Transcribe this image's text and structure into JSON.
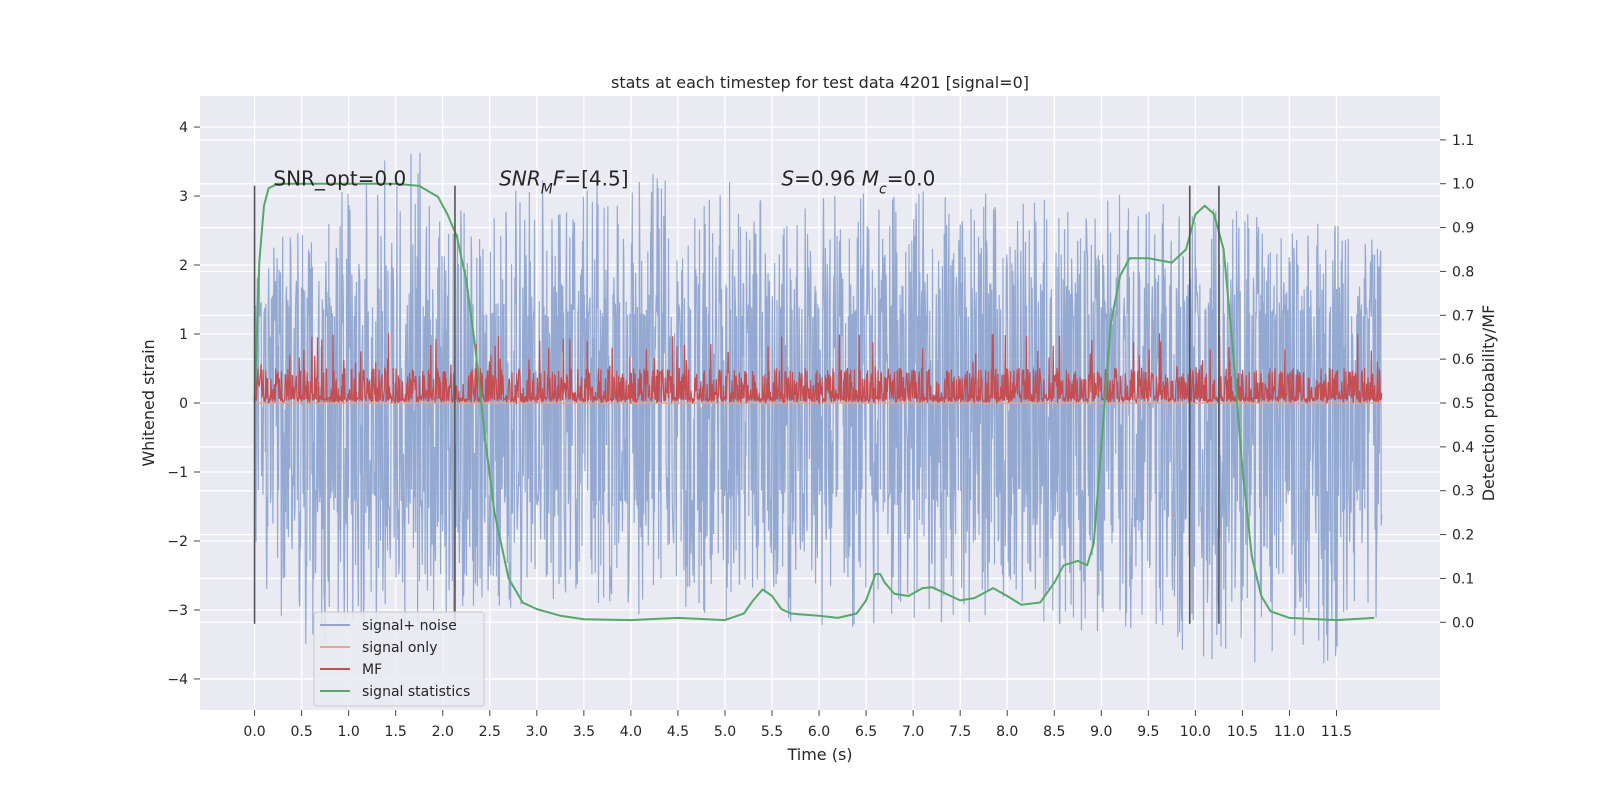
{
  "chart_data": {
    "type": "line",
    "title": "stats at each timestep for test data 4201 [signal=0]",
    "xlabel": "Time (s)",
    "ylabel_left": "Whitened strain",
    "ylabel_right": "Detection probability/MF",
    "xlim": [
      -0.58,
      12.6
    ],
    "ylim_left": [
      -4.45,
      4.45
    ],
    "ylim_right": [
      -0.2,
      1.2
    ],
    "x_ticks": [
      0.0,
      0.5,
      1.0,
      1.5,
      2.0,
      2.5,
      3.0,
      3.5,
      4.0,
      4.5,
      5.0,
      5.5,
      6.0,
      6.5,
      7.0,
      7.5,
      8.0,
      8.5,
      9.0,
      9.5,
      10.0,
      10.5,
      11.0,
      11.5
    ],
    "x_tick_labels": [
      "0.0",
      "0.5",
      "1.0",
      "1.5",
      "2.0",
      "2.5",
      "3.0",
      "3.5",
      "4.0",
      "4.5",
      "5.0",
      "5.5",
      "6.0",
      "6.5",
      "7.0",
      "7.5",
      "8.0",
      "8.5",
      "9.0",
      "9.5",
      "10.0",
      "10.5",
      "11.0",
      "11.5"
    ],
    "y_left_ticks": [
      -4,
      -3,
      -2,
      -1,
      0,
      1,
      2,
      3,
      4
    ],
    "y_left_tick_labels": [
      "−4",
      "−3",
      "−2",
      "−1",
      "0",
      "1",
      "2",
      "3",
      "4"
    ],
    "y_right_ticks": [
      0.0,
      0.1,
      0.2,
      0.3,
      0.4,
      0.5,
      0.6,
      0.7,
      0.8,
      0.9,
      1.0,
      1.1
    ],
    "y_right_tick_labels": [
      "0.0",
      "0.1",
      "0.2",
      "0.3",
      "0.4",
      "0.5",
      "0.6",
      "0.7",
      "0.8",
      "0.9",
      "1.0",
      "1.1"
    ],
    "grid": true,
    "legend_position": "lower-left",
    "annotations": [
      {
        "parts": [
          {
            "t": "SNR_opt=0.0",
            "i": false
          }
        ],
        "x": 0.2,
        "y": 3.15
      },
      {
        "parts": [
          {
            "t": "SNR",
            "i": true
          },
          {
            "t": "M",
            "i": true,
            "sub": true
          },
          {
            "t": "F",
            "i": true
          },
          {
            "t": "=[4.5]",
            "i": false
          }
        ],
        "x": 2.6,
        "y": 3.15
      },
      {
        "parts": [
          {
            "t": "S",
            "i": true
          },
          {
            "t": "=0.96   ",
            "i": false
          },
          {
            "t": "M",
            "i": true
          },
          {
            "t": "c",
            "i": true,
            "sub": true
          },
          {
            "t": "=0.0",
            "i": false
          }
        ],
        "x": 5.6,
        "y": 3.15
      }
    ],
    "vlines": [
      {
        "x": 0.0,
        "ymin": -3.2,
        "ymax": 3.15
      },
      {
        "x": 2.13,
        "ymin": -3.2,
        "ymax": 3.15
      },
      {
        "x": 9.94,
        "ymin": -3.2,
        "ymax": 3.15
      },
      {
        "x": 10.25,
        "ymin": -3.2,
        "ymax": 3.15
      }
    ],
    "series": [
      {
        "name": "signal+ noise",
        "axis": "left",
        "color": "#8fa5d0",
        "style": "noise",
        "x_range": [
          0.0,
          11.98
        ],
        "n_points": 2400,
        "envelope_upper": [
          [
            0.0,
            2.1
          ],
          [
            1.72,
            4.0
          ],
          [
            2.0,
            2.7
          ],
          [
            3.5,
            3.45
          ],
          [
            6.0,
            3.1
          ],
          [
            9.0,
            3.05
          ],
          [
            12.0,
            2.5
          ]
        ],
        "envelope_lower": [
          [
            0.0,
            -2.1
          ],
          [
            0.32,
            -3.65
          ],
          [
            3.0,
            -2.9
          ],
          [
            5.5,
            -3.3
          ],
          [
            8.3,
            -3.15
          ],
          [
            10.3,
            -3.8
          ],
          [
            11.3,
            -4.1
          ],
          [
            12.0,
            -3.0
          ]
        ],
        "band": 1.25
      },
      {
        "name": "signal only",
        "axis": "left",
        "color": "#eaa68d",
        "style": "flat",
        "value": 0.0
      },
      {
        "name": "MF",
        "axis": "right",
        "color": "#c44e52",
        "style": "band",
        "x_range": [
          0.0,
          11.98
        ],
        "n_points": 2400,
        "lower": 0.5,
        "upper_base": 0.58,
        "upper_max": 0.66
      },
      {
        "name": "signal statistics",
        "axis": "right",
        "color": "#55a868",
        "style": "curve",
        "x": [
          0.0,
          0.05,
          0.1,
          0.15,
          0.25,
          0.5,
          1.0,
          1.5,
          1.75,
          1.95,
          2.05,
          2.15,
          2.25,
          2.35,
          2.45,
          2.55,
          2.7,
          2.85,
          3.0,
          3.25,
          3.5,
          4.0,
          4.5,
          5.0,
          5.2,
          5.3,
          5.4,
          5.5,
          5.6,
          5.7,
          5.8,
          6.0,
          6.2,
          6.4,
          6.5,
          6.6,
          6.65,
          6.7,
          6.8,
          6.95,
          7.1,
          7.2,
          7.35,
          7.5,
          7.65,
          7.85,
          8.0,
          8.15,
          8.35,
          8.5,
          8.6,
          8.75,
          8.85,
          8.92,
          9.0,
          9.1,
          9.2,
          9.3,
          9.5,
          9.75,
          9.9,
          10.0,
          10.1,
          10.2,
          10.3,
          10.4,
          10.5,
          10.6,
          10.7,
          10.8,
          11.0,
          11.5,
          11.9
        ],
        "y": [
          0.5,
          0.82,
          0.95,
          0.99,
          1.0,
          1.0,
          1.0,
          1.0,
          0.995,
          0.97,
          0.93,
          0.88,
          0.78,
          0.62,
          0.42,
          0.25,
          0.1,
          0.045,
          0.03,
          0.015,
          0.007,
          0.005,
          0.01,
          0.005,
          0.02,
          0.05,
          0.075,
          0.06,
          0.03,
          0.02,
          0.018,
          0.015,
          0.01,
          0.02,
          0.05,
          0.11,
          0.11,
          0.09,
          0.065,
          0.06,
          0.078,
          0.08,
          0.065,
          0.05,
          0.055,
          0.078,
          0.06,
          0.04,
          0.045,
          0.09,
          0.13,
          0.14,
          0.13,
          0.18,
          0.4,
          0.68,
          0.79,
          0.83,
          0.83,
          0.82,
          0.85,
          0.93,
          0.95,
          0.93,
          0.85,
          0.62,
          0.35,
          0.15,
          0.06,
          0.025,
          0.01,
          0.005,
          0.01
        ]
      }
    ]
  }
}
